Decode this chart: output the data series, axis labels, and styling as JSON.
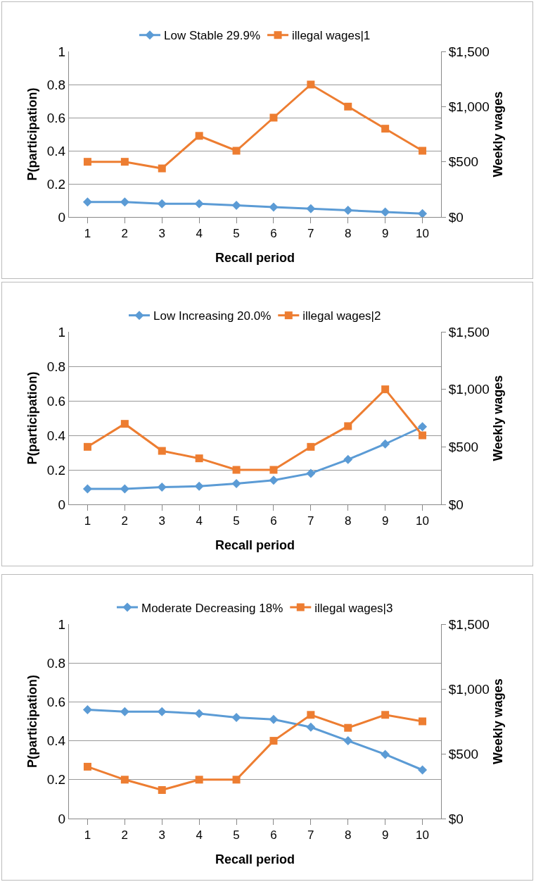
{
  "chart_data": [
    {
      "type": "line",
      "xlabel": "Recall period",
      "ylabel": "P(participation)",
      "y2label": "Weekly wages",
      "categories": [
        "1",
        "2",
        "3",
        "4",
        "5",
        "6",
        "7",
        "8",
        "9",
        "10"
      ],
      "series": [
        {
          "name": "Low Stable 29.9%",
          "color": "#5b9bd5",
          "marker": "diamond",
          "values": [
            0.09,
            0.09,
            0.08,
            0.08,
            0.07,
            0.06,
            0.05,
            0.04,
            0.03,
            0.02
          ]
        },
        {
          "name": "illegal wages|1",
          "color": "#ed7d31",
          "marker": "square",
          "axis": "y2",
          "values": [
            500,
            500,
            440,
            735,
            600,
            900,
            1200,
            1000,
            800,
            600
          ]
        }
      ],
      "ylim": [
        0,
        1
      ],
      "yticks": [
        0,
        0.2,
        0.4,
        0.6,
        0.8,
        1
      ],
      "y2lim": [
        0,
        1500
      ],
      "y2ticks": [
        {
          "value": 0,
          "label": "$0"
        },
        {
          "value": 500,
          "label": "$500"
        },
        {
          "value": 1000,
          "label": "$1,000"
        },
        {
          "value": 1500,
          "label": "$1,500"
        }
      ],
      "grid": "y",
      "legend": "top"
    },
    {
      "type": "line",
      "xlabel": "Recall period",
      "ylabel": "P(participation)",
      "y2label": "Weekly wages",
      "categories": [
        "1",
        "2",
        "3",
        "4",
        "5",
        "6",
        "7",
        "8",
        "9",
        "10"
      ],
      "series": [
        {
          "name": "Low Increasing 20.0%",
          "color": "#5b9bd5",
          "marker": "diamond",
          "values": [
            0.09,
            0.09,
            0.1,
            0.105,
            0.12,
            0.14,
            0.18,
            0.26,
            0.35,
            0.45
          ]
        },
        {
          "name": "illegal wages|2",
          "color": "#ed7d31",
          "marker": "square",
          "axis": "y2",
          "values": [
            500,
            700,
            465,
            400,
            300,
            300,
            500,
            680,
            1000,
            600
          ]
        }
      ],
      "ylim": [
        0,
        1
      ],
      "yticks": [
        0,
        0.2,
        0.4,
        0.6,
        0.8,
        1
      ],
      "y2lim": [
        0,
        1500
      ],
      "y2ticks": [
        {
          "value": 0,
          "label": "$0"
        },
        {
          "value": 500,
          "label": "$500"
        },
        {
          "value": 1000,
          "label": "$1,000"
        },
        {
          "value": 1500,
          "label": "$1,500"
        }
      ],
      "grid": "y",
      "legend": "top"
    },
    {
      "type": "line",
      "xlabel": "Recall period",
      "ylabel": "P(participation)",
      "y2label": "Weekly wages",
      "categories": [
        "1",
        "2",
        "3",
        "4",
        "5",
        "6",
        "7",
        "8",
        "9",
        "10"
      ],
      "series": [
        {
          "name": "Moderate Decreasing 18%",
          "color": "#5b9bd5",
          "marker": "diamond",
          "values": [
            0.56,
            0.55,
            0.55,
            0.54,
            0.52,
            0.51,
            0.47,
            0.4,
            0.33,
            0.25
          ]
        },
        {
          "name": "illegal wages|3",
          "color": "#ed7d31",
          "marker": "square",
          "axis": "y2",
          "values": [
            400,
            300,
            220,
            300,
            300,
            600,
            800,
            700,
            800,
            750
          ]
        }
      ],
      "ylim": [
        0,
        1
      ],
      "yticks": [
        0,
        0.2,
        0.4,
        0.6,
        0.8,
        1
      ],
      "y2lim": [
        0,
        1500
      ],
      "y2ticks": [
        {
          "value": 0,
          "label": "$0"
        },
        {
          "value": 500,
          "label": "$500"
        },
        {
          "value": 1000,
          "label": "$1,000"
        },
        {
          "value": 1500,
          "label": "$1,500"
        }
      ],
      "grid": "y",
      "legend": "top"
    }
  ]
}
